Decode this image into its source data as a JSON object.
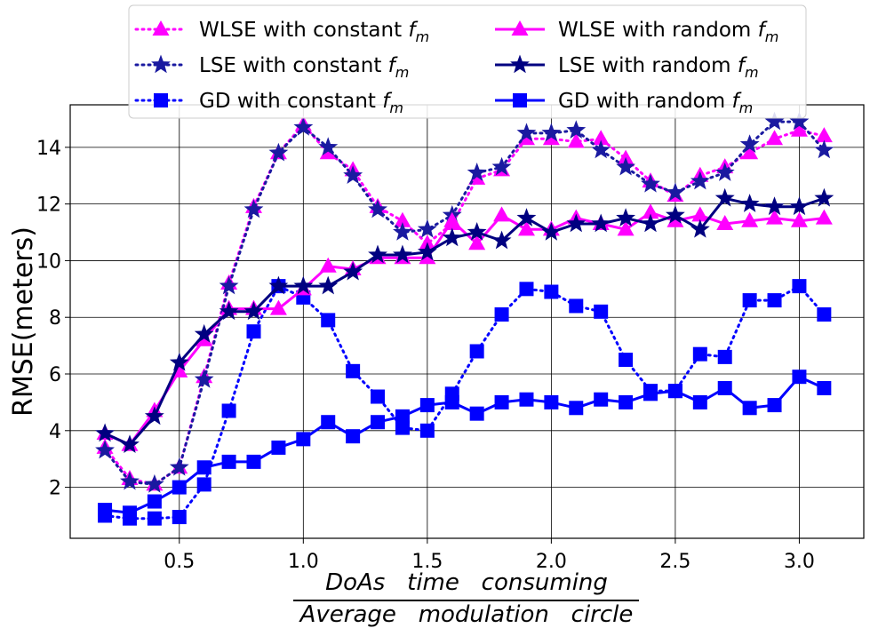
{
  "chart_data": {
    "type": "line",
    "title": "",
    "ylabel": "RMSE(meters)",
    "xlabel_numerator": "DoAs   time   consuming",
    "xlabel_denominator": "Average   modulation   circle",
    "xlim": [
      0.06,
      3.26
    ],
    "ylim": [
      0.2,
      15.5
    ],
    "xticks": [
      0.5,
      1.0,
      1.5,
      2.0,
      2.5,
      3.0
    ],
    "xtick_labels": [
      "0.5",
      "1.0",
      "1.5",
      "2.0",
      "2.5",
      "3.0"
    ],
    "yticks": [
      2,
      4,
      6,
      8,
      10,
      12,
      14
    ],
    "ytick_labels": [
      "2",
      "4",
      "6",
      "8",
      "10",
      "12",
      "14"
    ],
    "grid": true,
    "legend_position": "top-center",
    "x": [
      0.2,
      0.3,
      0.4,
      0.5,
      0.6,
      0.7,
      0.8,
      0.9,
      1.0,
      1.1,
      1.2,
      1.3,
      1.4,
      1.5,
      1.6,
      1.7,
      1.8,
      1.9,
      2.0,
      2.1,
      2.2,
      2.3,
      2.4,
      2.5,
      2.6,
      2.7,
      2.8,
      2.9,
      3.0,
      3.1
    ],
    "series": [
      {
        "name": "WLSE with constant",
        "subscript_label": "f",
        "subscript": "m",
        "color": "#ff00ff",
        "linestyle": "dotted",
        "marker": "triangle",
        "values": [
          3.4,
          2.3,
          2.1,
          2.7,
          5.9,
          9.2,
          11.9,
          13.8,
          14.8,
          13.8,
          13.2,
          11.9,
          11.4,
          10.6,
          11.3,
          12.9,
          13.2,
          14.3,
          14.3,
          14.2,
          14.3,
          13.6,
          12.8,
          12.3,
          13.0,
          13.3,
          13.8,
          14.3,
          14.6,
          14.4
        ]
      },
      {
        "name": "LSE with constant",
        "subscript_label": "f",
        "subscript": "m",
        "color": "#1a1aa0",
        "linestyle": "dotted",
        "marker": "star",
        "values": [
          3.3,
          2.2,
          2.1,
          2.7,
          5.8,
          9.1,
          11.8,
          13.8,
          14.7,
          14.0,
          13.0,
          11.8,
          11.0,
          11.1,
          11.6,
          13.1,
          13.3,
          14.5,
          14.5,
          14.6,
          13.9,
          13.3,
          12.7,
          12.4,
          12.8,
          13.1,
          14.1,
          14.9,
          14.9,
          13.9
        ]
      },
      {
        "name": "GD with constant",
        "subscript_label": "f",
        "subscript": "m",
        "color": "#0000ff",
        "linestyle": "dotted",
        "marker": "square",
        "values": [
          1.0,
          0.9,
          0.9,
          0.95,
          2.1,
          4.7,
          7.5,
          9.1,
          8.7,
          7.9,
          6.1,
          5.2,
          4.1,
          4.0,
          5.3,
          6.8,
          8.1,
          9.0,
          8.9,
          8.4,
          8.2,
          6.5,
          5.4,
          5.4,
          6.7,
          6.6,
          8.6,
          8.6,
          9.1,
          8.1
        ]
      },
      {
        "name": "WLSE with random",
        "subscript_label": "f",
        "subscript": "m",
        "color": "#ff00ff",
        "linestyle": "solid",
        "marker": "triangle",
        "values": [
          3.9,
          3.5,
          4.7,
          6.1,
          7.2,
          8.3,
          8.3,
          8.3,
          9.0,
          9.8,
          9.7,
          10.1,
          10.1,
          10.1,
          11.4,
          10.6,
          11.6,
          11.1,
          11.1,
          11.5,
          11.3,
          11.1,
          11.7,
          11.4,
          11.6,
          11.3,
          11.4,
          11.5,
          11.4,
          11.5
        ]
      },
      {
        "name": "LSE with random",
        "subscript_label": "f",
        "subscript": "m",
        "color": "#000080",
        "linestyle": "solid",
        "marker": "star",
        "values": [
          3.9,
          3.5,
          4.5,
          6.4,
          7.4,
          8.2,
          8.2,
          9.1,
          9.1,
          9.1,
          9.6,
          10.2,
          10.2,
          10.3,
          10.8,
          11.0,
          10.7,
          11.5,
          11.0,
          11.3,
          11.3,
          11.5,
          11.3,
          11.6,
          11.1,
          12.2,
          12.0,
          11.9,
          11.9,
          12.2
        ]
      },
      {
        "name": "GD with random",
        "subscript_label": "f",
        "subscript": "m",
        "color": "#0000ff",
        "linestyle": "solid",
        "marker": "square",
        "values": [
          1.2,
          1.1,
          1.5,
          2.0,
          2.7,
          2.9,
          2.9,
          3.4,
          3.7,
          4.3,
          3.8,
          4.3,
          4.5,
          4.9,
          5.0,
          4.6,
          5.0,
          5.1,
          5.0,
          4.8,
          5.1,
          5.0,
          5.3,
          5.4,
          5.0,
          5.5,
          4.8,
          4.9,
          5.9,
          5.5
        ]
      }
    ]
  }
}
